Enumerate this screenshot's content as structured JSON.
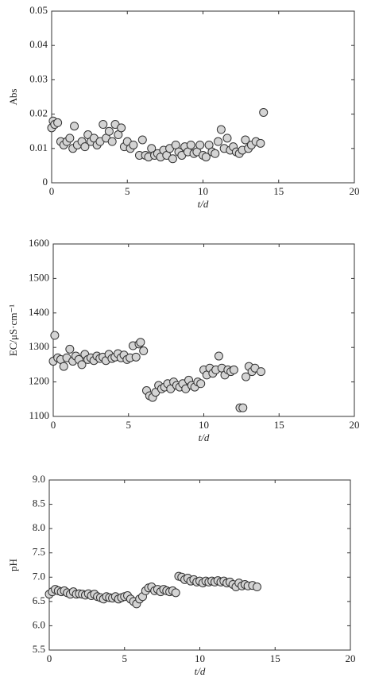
{
  "chart_data": [
    {
      "type": "scatter",
      "ylabel": "Abs",
      "xlabel": "t/d",
      "color": "#d4d4d4",
      "edgecolor": "#333333",
      "xlim": [
        0,
        20
      ],
      "xticks": [
        0,
        5,
        10,
        15,
        20
      ],
      "ylim": [
        0,
        0.05
      ],
      "yticks": [
        0,
        0.01,
        0.02,
        0.03,
        0.04,
        0.05
      ],
      "x": [
        0.0,
        0.1,
        0.2,
        0.4,
        0.6,
        0.8,
        1.0,
        1.2,
        1.4,
        1.5,
        1.7,
        2.0,
        2.2,
        2.4,
        2.6,
        2.8,
        3.0,
        3.2,
        3.4,
        3.6,
        3.8,
        4.0,
        4.2,
        4.4,
        4.6,
        4.8,
        5.0,
        5.2,
        5.4,
        5.8,
        6.0,
        6.2,
        6.4,
        6.6,
        6.8,
        7.0,
        7.2,
        7.4,
        7.6,
        7.8,
        8.0,
        8.2,
        8.4,
        8.6,
        8.8,
        9.0,
        9.2,
        9.4,
        9.6,
        9.8,
        10.0,
        10.2,
        10.4,
        10.6,
        10.8,
        11.0,
        11.2,
        11.4,
        11.6,
        11.8,
        12.0,
        12.2,
        12.4,
        12.6,
        12.8,
        13.0,
        13.2,
        13.5,
        13.8,
        14.0
      ],
      "values": [
        0.016,
        0.018,
        0.017,
        0.0175,
        0.012,
        0.011,
        0.012,
        0.013,
        0.01,
        0.0165,
        0.011,
        0.012,
        0.0105,
        0.014,
        0.012,
        0.013,
        0.011,
        0.012,
        0.017,
        0.013,
        0.015,
        0.012,
        0.017,
        0.014,
        0.016,
        0.0105,
        0.012,
        0.01,
        0.011,
        0.008,
        0.0125,
        0.008,
        0.0075,
        0.01,
        0.008,
        0.0085,
        0.0075,
        0.0095,
        0.008,
        0.01,
        0.007,
        0.011,
        0.009,
        0.008,
        0.0105,
        0.009,
        0.011,
        0.0085,
        0.009,
        0.011,
        0.008,
        0.0075,
        0.011,
        0.009,
        0.0085,
        0.012,
        0.0155,
        0.01,
        0.013,
        0.0095,
        0.0105,
        0.009,
        0.0085,
        0.0095,
        0.0125,
        0.01,
        0.011,
        0.012,
        0.0115,
        0.0205
      ]
    },
    {
      "type": "scatter",
      "ylabel": "EC/μS·cm⁻¹",
      "xlabel": "t/d",
      "color": "#d4d4d4",
      "edgecolor": "#333333",
      "xlim": [
        0,
        20
      ],
      "xticks": [
        0,
        5,
        10,
        15,
        20
      ],
      "ylim": [
        1100,
        1600
      ],
      "yticks": [
        1100,
        1200,
        1300,
        1400,
        1500,
        1600
      ],
      "x": [
        0.0,
        0.1,
        0.3,
        0.5,
        0.7,
        0.9,
        1.1,
        1.3,
        1.5,
        1.7,
        1.9,
        2.1,
        2.3,
        2.5,
        2.7,
        2.9,
        3.1,
        3.3,
        3.5,
        3.7,
        3.9,
        4.1,
        4.3,
        4.5,
        4.7,
        4.9,
        5.1,
        5.3,
        5.5,
        5.7,
        5.8,
        6.0,
        6.2,
        6.4,
        6.6,
        6.8,
        7.0,
        7.2,
        7.4,
        7.6,
        7.8,
        8.0,
        8.2,
        8.4,
        8.6,
        8.8,
        9.0,
        9.2,
        9.4,
        9.6,
        9.8,
        10.0,
        10.2,
        10.4,
        10.6,
        10.8,
        11.0,
        11.2,
        11.4,
        11.6,
        11.8,
        12.0,
        12.4,
        12.6,
        12.8,
        13.0,
        13.2,
        13.4,
        13.8
      ],
      "values": [
        1260,
        1335,
        1270,
        1265,
        1245,
        1270,
        1295,
        1260,
        1275,
        1265,
        1250,
        1280,
        1265,
        1270,
        1262,
        1275,
        1268,
        1272,
        1262,
        1280,
        1268,
        1272,
        1282,
        1270,
        1278,
        1265,
        1270,
        1305,
        1272,
        1310,
        1315,
        1290,
        1175,
        1160,
        1155,
        1170,
        1190,
        1180,
        1185,
        1195,
        1180,
        1200,
        1190,
        1185,
        1195,
        1180,
        1205,
        1190,
        1185,
        1200,
        1195,
        1235,
        1220,
        1240,
        1225,
        1235,
        1275,
        1240,
        1220,
        1235,
        1230,
        1235,
        1125,
        1125,
        1215,
        1245,
        1230,
        1240,
        1230
      ]
    },
    {
      "type": "scatter",
      "ylabel": "pH",
      "xlabel": "t/d",
      "color": "#d4d4d4",
      "edgecolor": "#333333",
      "xlim": [
        0,
        20
      ],
      "xticks": [
        0,
        5,
        10,
        15,
        20
      ],
      "ylim": [
        5.5,
        9.0
      ],
      "yticks": [
        5.5,
        {
          "value": 6,
          "label": "6.0"
        },
        6.5,
        {
          "value": 7,
          "label": "7.0"
        },
        7.5,
        {
          "value": 8,
          "label": "8.0"
        },
        8.5,
        {
          "value": 9,
          "label": "9.0"
        }
      ],
      "x": [
        0.0,
        0.2,
        0.4,
        0.6,
        0.8,
        1.0,
        1.2,
        1.4,
        1.6,
        1.8,
        2.0,
        2.2,
        2.4,
        2.6,
        2.8,
        3.0,
        3.2,
        3.4,
        3.6,
        3.8,
        4.0,
        4.2,
        4.4,
        4.6,
        4.8,
        5.0,
        5.2,
        5.4,
        5.6,
        5.8,
        6.0,
        6.2,
        6.4,
        6.6,
        6.8,
        7.0,
        7.2,
        7.4,
        7.6,
        7.8,
        8.0,
        8.2,
        8.4,
        8.6,
        8.8,
        9.0,
        9.2,
        9.4,
        9.6,
        9.8,
        10.0,
        10.2,
        10.4,
        10.6,
        10.8,
        11.0,
        11.2,
        11.4,
        11.6,
        11.8,
        12.0,
        12.2,
        12.4,
        12.6,
        12.8,
        13.0,
        13.2,
        13.5,
        13.8
      ],
      "values": [
        6.65,
        6.7,
        6.75,
        6.72,
        6.7,
        6.72,
        6.68,
        6.65,
        6.7,
        6.65,
        6.66,
        6.65,
        6.63,
        6.66,
        6.62,
        6.65,
        6.6,
        6.58,
        6.55,
        6.6,
        6.58,
        6.57,
        6.6,
        6.55,
        6.58,
        6.6,
        6.62,
        6.55,
        6.5,
        6.45,
        6.55,
        6.6,
        6.72,
        6.78,
        6.8,
        6.72,
        6.75,
        6.7,
        6.75,
        6.72,
        6.7,
        6.72,
        6.68,
        7.02,
        7.0,
        6.95,
        6.98,
        6.92,
        6.95,
        6.9,
        6.92,
        6.88,
        6.92,
        6.9,
        6.92,
        6.9,
        6.93,
        6.9,
        6.92,
        6.88,
        6.9,
        6.85,
        6.8,
        6.88,
        6.82,
        6.85,
        6.82,
        6.83,
        6.8
      ]
    }
  ]
}
